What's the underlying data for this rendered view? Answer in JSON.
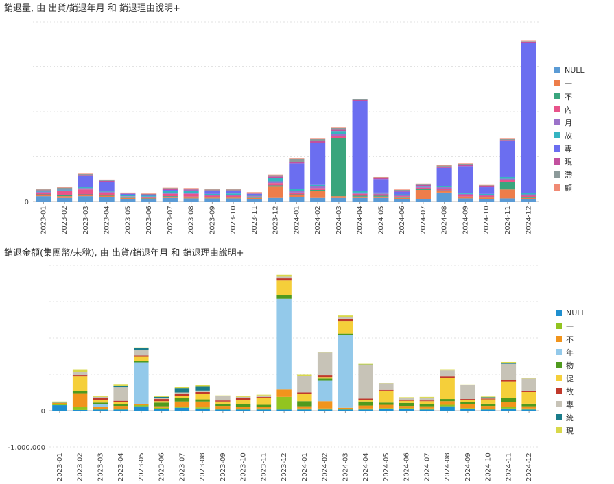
{
  "chart_data": [
    {
      "type": "bar",
      "stacked": true,
      "title": "銷退量, 由 出貨/銷退年月 和 銷退理由說明+",
      "xlabel": "",
      "ylabel": "",
      "ylim": [
        0,
        4000
      ],
      "y_ticks": [
        0,
        1000,
        2000,
        3000,
        4000
      ],
      "y_tick_labels": [
        "0",
        "",
        "",
        "",
        ""
      ],
      "grid": true,
      "legend_position": "right",
      "categories": [
        "2023-01",
        "2023-02",
        "2023-03",
        "2023-04",
        "2023-05",
        "2023-06",
        "2023-07",
        "2023-08",
        "2023-09",
        "2023-10",
        "2023-11",
        "2023-12",
        "2024-01",
        "2024-02",
        "2024-03",
        "2024-04",
        "2024-05",
        "2024-06",
        "2024-07",
        "2024-08",
        "2024-09",
        "2024-10",
        "2024-11",
        "2024-12"
      ],
      "series": [
        {
          "name": "NULL",
          "color": "#5b9bd5",
          "values": [
            120,
            80,
            120,
            100,
            60,
            50,
            80,
            70,
            70,
            70,
            60,
            80,
            100,
            80,
            80,
            80,
            80,
            60,
            60,
            200,
            70,
            60,
            70,
            50
          ]
        },
        {
          "name": "一",
          "color": "#ed7d4a",
          "values": [
            30,
            40,
            30,
            30,
            20,
            20,
            20,
            20,
            20,
            20,
            20,
            250,
            40,
            160,
            40,
            30,
            30,
            20,
            200,
            30,
            30,
            30,
            200,
            30
          ]
        },
        {
          "name": "不",
          "color": "#3aa57d",
          "values": [
            10,
            20,
            10,
            10,
            10,
            10,
            20,
            20,
            10,
            10,
            10,
            30,
            20,
            20,
            1300,
            20,
            20,
            10,
            20,
            20,
            10,
            10,
            170,
            20
          ]
        },
        {
          "name": "內",
          "color": "#e8548a",
          "values": [
            40,
            90,
            110,
            60,
            20,
            20,
            50,
            60,
            30,
            30,
            20,
            50,
            40,
            40,
            40,
            40,
            30,
            30,
            30,
            40,
            40,
            30,
            40,
            30
          ]
        },
        {
          "name": "月",
          "color": "#9b72c9",
          "values": [
            20,
            20,
            30,
            20,
            10,
            10,
            20,
            20,
            20,
            20,
            20,
            40,
            40,
            40,
            40,
            30,
            20,
            20,
            20,
            30,
            20,
            20,
            30,
            30
          ]
        },
        {
          "name": "故",
          "color": "#35b4c1",
          "values": [
            20,
            20,
            20,
            20,
            20,
            20,
            40,
            40,
            20,
            30,
            20,
            80,
            40,
            30,
            70,
            30,
            20,
            20,
            20,
            30,
            20,
            20,
            40,
            30
          ]
        },
        {
          "name": "專",
          "color": "#6b6ef0",
          "values": [
            0,
            0,
            250,
            200,
            30,
            20,
            30,
            20,
            60,
            50,
            20,
            0,
            570,
            940,
            0,
            2000,
            300,
            60,
            0,
            400,
            600,
            150,
            800,
            3350
          ]
        },
        {
          "name": "現",
          "color": "#c2509e",
          "values": [
            10,
            20,
            20,
            20,
            10,
            10,
            20,
            20,
            20,
            20,
            10,
            30,
            30,
            40,
            40,
            30,
            20,
            20,
            20,
            30,
            30,
            20,
            20,
            20
          ]
        },
        {
          "name": "滯",
          "color": "#8c9a9a",
          "values": [
            20,
            20,
            20,
            20,
            10,
            10,
            20,
            20,
            20,
            20,
            20,
            30,
            70,
            40,
            40,
            20,
            20,
            20,
            20,
            20,
            20,
            20,
            20,
            10
          ]
        },
        {
          "name": "顧",
          "color": "#f08a74",
          "values": [
            10,
            10,
            10,
            10,
            10,
            10,
            10,
            10,
            10,
            10,
            10,
            10,
            10,
            10,
            10,
            10,
            10,
            10,
            10,
            10,
            10,
            10,
            10,
            10
          ]
        }
      ]
    },
    {
      "type": "bar",
      "stacked": true,
      "title": "銷退金額(集團幣/未稅), 由 出貨/銷退年月 和 銷退理由說明+",
      "xlabel": "",
      "ylabel": "",
      "ylim": [
        -1000000,
        4000000
      ],
      "y_ticks": [
        -1000000,
        0,
        1000000,
        2000000,
        3000000,
        4000000
      ],
      "y_tick_labels": [
        "-1,000,000",
        "0",
        "",
        "",
        "",
        ""
      ],
      "grid": true,
      "legend_position": "right",
      "categories": [
        "2023-01",
        "2023-02",
        "2023-03",
        "2023-04",
        "2023-05",
        "2023-06",
        "2023-07",
        "2023-08",
        "2023-09",
        "2023-10",
        "2023-11",
        "2023-12",
        "2024-01",
        "2024-02",
        "2024-03",
        "2024-04",
        "2024-05",
        "2024-06",
        "2024-07",
        "2024-08",
        "2024-09",
        "2024-10",
        "2024-11",
        "2024-12"
      ],
      "series": [
        {
          "name": "NULL",
          "color": "#1f8fcf",
          "values": [
            150000,
            20000,
            30000,
            30000,
            120000,
            40000,
            80000,
            60000,
            30000,
            30000,
            30000,
            30000,
            30000,
            30000,
            30000,
            30000,
            40000,
            40000,
            30000,
            120000,
            40000,
            30000,
            60000,
            30000
          ]
        },
        {
          "name": "一",
          "color": "#92c420",
          "values": [
            20000,
            80000,
            20000,
            20000,
            30000,
            40000,
            30000,
            30000,
            20000,
            20000,
            30000,
            350000,
            30000,
            30000,
            20000,
            30000,
            30000,
            30000,
            30000,
            40000,
            30000,
            20000,
            40000,
            30000
          ]
        },
        {
          "name": "不",
          "color": "#f1941c",
          "values": [
            40000,
            380000,
            60000,
            80000,
            30000,
            40000,
            140000,
            160000,
            80000,
            60000,
            40000,
            200000,
            60000,
            200000,
            30000,
            80000,
            90000,
            60000,
            60000,
            100000,
            100000,
            80000,
            140000,
            60000
          ]
        },
        {
          "name": "年",
          "color": "#93c9ea",
          "values": [
            0,
            0,
            60000,
            0,
            1150000,
            0,
            0,
            0,
            0,
            0,
            0,
            2500000,
            0,
            560000,
            2000000,
            0,
            0,
            0,
            0,
            0,
            0,
            0,
            0,
            0
          ]
        },
        {
          "name": "物",
          "color": "#4f9a1e",
          "values": [
            10000,
            60000,
            50000,
            40000,
            30000,
            100000,
            100000,
            60000,
            60000,
            60000,
            60000,
            100000,
            140000,
            60000,
            40000,
            110000,
            60000,
            80000,
            60000,
            60000,
            60000,
            60000,
            100000,
            70000
          ]
        },
        {
          "name": "促",
          "color": "#f5cf3a",
          "values": [
            0,
            400000,
            80000,
            60000,
            120000,
            40000,
            60000,
            160000,
            60000,
            120000,
            200000,
            400000,
            200000,
            40000,
            350000,
            40000,
            330000,
            60000,
            80000,
            580000,
            60000,
            120000,
            460000,
            320000
          ]
        },
        {
          "name": "故",
          "color": "#c0392b",
          "values": [
            0,
            40000,
            40000,
            40000,
            40000,
            60000,
            60000,
            40000,
            30000,
            60000,
            20000,
            60000,
            40000,
            60000,
            60000,
            40000,
            20000,
            20000,
            20000,
            40000,
            30000,
            20000,
            40000,
            30000
          ]
        },
        {
          "name": "專",
          "color": "#c7c3b7",
          "values": [
            10000,
            80000,
            40000,
            370000,
            140000,
            20000,
            30000,
            40000,
            120000,
            30000,
            40000,
            50000,
            460000,
            620000,
            50000,
            920000,
            180000,
            60000,
            80000,
            170000,
            380000,
            20000,
            450000,
            340000
          ]
        },
        {
          "name": "統",
          "color": "#1a7c8a",
          "values": [
            0,
            0,
            0,
            40000,
            60000,
            40000,
            120000,
            120000,
            0,
            0,
            0,
            0,
            0,
            0,
            0,
            20000,
            0,
            0,
            0,
            0,
            0,
            20000,
            20000,
            0
          ]
        },
        {
          "name": "現",
          "color": "#d8d84a",
          "values": [
            20000,
            80000,
            30000,
            50000,
            20000,
            20000,
            30000,
            30000,
            20000,
            20000,
            20000,
            50000,
            30000,
            20000,
            40000,
            20000,
            20000,
            20000,
            20000,
            30000,
            20000,
            20000,
            30000,
            20000
          ]
        }
      ]
    }
  ]
}
